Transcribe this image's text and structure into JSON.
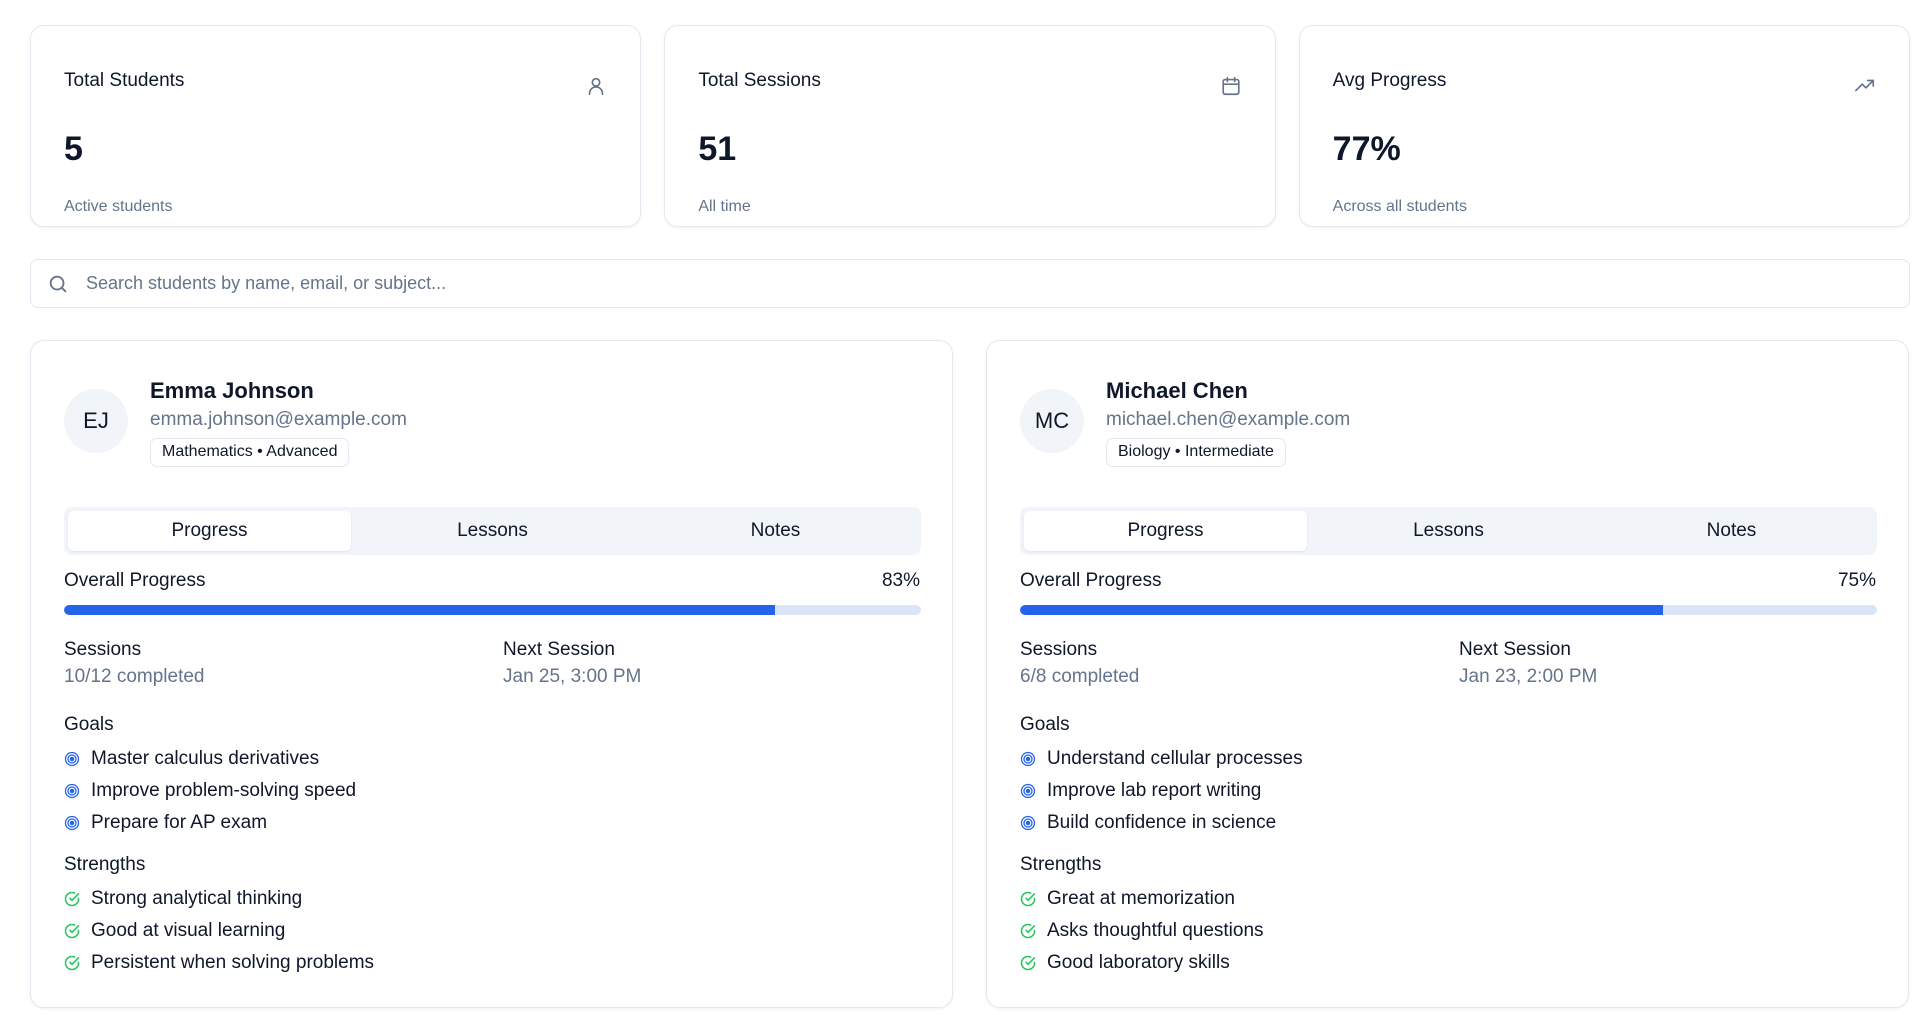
{
  "colors": {
    "accent": "#2563eb",
    "track": "#dbe4f8",
    "goal_icon": "#2563eb",
    "strength_icon": "#22c55e",
    "muted_text": "#64748b",
    "border": "#e2e8f0"
  },
  "stats": [
    {
      "title": "Total Students",
      "value": "5",
      "subtitle": "Active students",
      "icon": "user-icon"
    },
    {
      "title": "Total Sessions",
      "value": "51",
      "subtitle": "All time",
      "icon": "calendar-icon"
    },
    {
      "title": "Avg Progress",
      "value": "77%",
      "subtitle": "Across all students",
      "icon": "trending-up-icon"
    }
  ],
  "search": {
    "placeholder": "Search students by name, email, or subject...",
    "value": "",
    "icon": "search-icon"
  },
  "students": [
    {
      "initials": "EJ",
      "name": "Emma Johnson",
      "email": "emma.johnson@example.com",
      "subject_level": "Mathematics • Advanced",
      "tabs": [
        "Progress",
        "Lessons",
        "Notes"
      ],
      "active_tab": "Progress",
      "progress_label": "Overall Progress",
      "progress_text": "83%",
      "progress": 0.83,
      "sessions_label": "Sessions",
      "sessions_value": "10/12 completed",
      "next_label": "Next Session",
      "next_value": "Jan 25, 3:00 PM",
      "goals_label": "Goals",
      "goals": [
        "Master calculus derivatives",
        "Improve problem-solving speed",
        "Prepare for AP exam"
      ],
      "strengths_label": "Strengths",
      "strengths": [
        "Strong analytical thinking",
        "Good at visual learning",
        "Persistent when solving problems"
      ]
    },
    {
      "initials": "MC",
      "name": "Michael Chen",
      "email": "michael.chen@example.com",
      "subject_level": "Biology • Intermediate",
      "tabs": [
        "Progress",
        "Lessons",
        "Notes"
      ],
      "active_tab": "Progress",
      "progress_label": "Overall Progress",
      "progress_text": "75%",
      "progress": 0.75,
      "sessions_label": "Sessions",
      "sessions_value": "6/8 completed",
      "next_label": "Next Session",
      "next_value": "Jan 23, 2:00 PM",
      "goals_label": "Goals",
      "goals": [
        "Understand cellular processes",
        "Improve lab report writing",
        "Build confidence in science"
      ],
      "strengths_label": "Strengths",
      "strengths": [
        "Great at memorization",
        "Asks thoughtful questions",
        "Good laboratory skills"
      ]
    }
  ]
}
